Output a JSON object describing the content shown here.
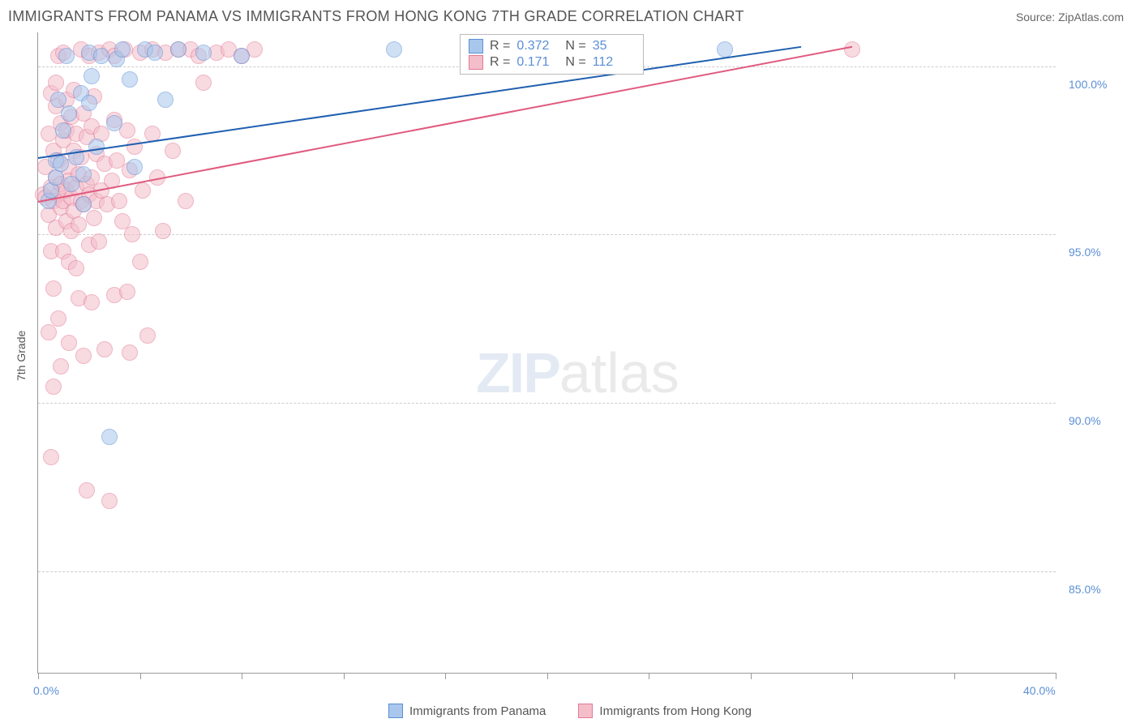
{
  "title": "IMMIGRANTS FROM PANAMA VS IMMIGRANTS FROM HONG KONG 7TH GRADE CORRELATION CHART",
  "source": "Source: ZipAtlas.com",
  "y_axis_title": "7th Grade",
  "watermark": {
    "part1": "ZIP",
    "part2": "atlas"
  },
  "xlim": [
    0,
    40
  ],
  "ylim": [
    82,
    101
  ],
  "x_ticks": [
    0,
    4,
    8,
    12,
    16,
    20,
    24,
    28,
    32,
    36,
    40
  ],
  "x_tick_labels": {
    "0": "0.0%",
    "40": "40.0%"
  },
  "y_grid": [
    85,
    90,
    95,
    100
  ],
  "y_labels": {
    "85": "85.0%",
    "90": "90.0%",
    "95": "95.0%",
    "100": "100.0%"
  },
  "colors": {
    "grid": "#cccccc",
    "axis": "#999999",
    "label": "#5b8fd6",
    "text": "#555555",
    "bg": "#ffffff"
  },
  "series": [
    {
      "name": "Immigrants from Panama",
      "fill": "#a9c7ec",
      "stroke": "#5b8fd6",
      "line_color": "#1f5fb0",
      "r_label": "R =",
      "r_value": "0.372",
      "n_label": "N =",
      "n_value": "35",
      "trend": {
        "x1": 0,
        "y1": 97.3,
        "x2": 30,
        "y2": 100.6
      },
      "points": [
        [
          0.4,
          96.0
        ],
        [
          0.5,
          96.3
        ],
        [
          0.7,
          97.2
        ],
        [
          0.7,
          96.7
        ],
        [
          0.8,
          99.0
        ],
        [
          0.9,
          97.1
        ],
        [
          1.0,
          98.1
        ],
        [
          1.1,
          100.3
        ],
        [
          1.2,
          98.6
        ],
        [
          1.3,
          96.5
        ],
        [
          1.5,
          97.3
        ],
        [
          1.7,
          99.2
        ],
        [
          1.8,
          95.9
        ],
        [
          1.8,
          96.8
        ],
        [
          2.0,
          100.4
        ],
        [
          2.0,
          98.9
        ],
        [
          2.1,
          99.7
        ],
        [
          2.3,
          97.6
        ],
        [
          2.5,
          100.3
        ],
        [
          2.8,
          89.0
        ],
        [
          3.0,
          98.3
        ],
        [
          3.1,
          100.2
        ],
        [
          3.3,
          100.5
        ],
        [
          3.6,
          99.6
        ],
        [
          3.8,
          97.0
        ],
        [
          4.2,
          100.5
        ],
        [
          4.6,
          100.4
        ],
        [
          5.0,
          99.0
        ],
        [
          5.5,
          100.5
        ],
        [
          6.5,
          100.4
        ],
        [
          8.0,
          100.3
        ],
        [
          14.0,
          100.5
        ],
        [
          17.5,
          100.4
        ],
        [
          18.0,
          100.5
        ],
        [
          27.0,
          100.5
        ]
      ]
    },
    {
      "name": "Immigrants from Hong Kong",
      "fill": "#f4bdca",
      "stroke": "#e27a95",
      "line_color": "#e05a7e",
      "r_label": "R =",
      "r_value": "0.171",
      "n_label": "N =",
      "n_value": "112",
      "trend": {
        "x1": 0,
        "y1": 96.0,
        "x2": 32,
        "y2": 100.6
      },
      "points": [
        [
          0.2,
          96.2
        ],
        [
          0.3,
          96.1
        ],
        [
          0.3,
          97.0
        ],
        [
          0.4,
          95.6
        ],
        [
          0.4,
          98.0
        ],
        [
          0.4,
          92.1
        ],
        [
          0.5,
          96.4
        ],
        [
          0.5,
          99.2
        ],
        [
          0.5,
          94.5
        ],
        [
          0.5,
          88.4
        ],
        [
          0.6,
          96.0
        ],
        [
          0.6,
          97.5
        ],
        [
          0.6,
          93.4
        ],
        [
          0.6,
          90.5
        ],
        [
          0.7,
          96.7
        ],
        [
          0.7,
          95.2
        ],
        [
          0.7,
          98.8
        ],
        [
          0.7,
          99.5
        ],
        [
          0.8,
          96.2
        ],
        [
          0.8,
          97.2
        ],
        [
          0.8,
          92.5
        ],
        [
          0.8,
          100.3
        ],
        [
          0.9,
          95.8
        ],
        [
          0.9,
          96.5
        ],
        [
          0.9,
          98.3
        ],
        [
          0.9,
          91.1
        ],
        [
          1.0,
          96.0
        ],
        [
          1.0,
          97.8
        ],
        [
          1.0,
          100.4
        ],
        [
          1.0,
          94.5
        ],
        [
          1.1,
          96.3
        ],
        [
          1.1,
          95.4
        ],
        [
          1.1,
          98.1
        ],
        [
          1.1,
          99.0
        ],
        [
          1.2,
          94.2
        ],
        [
          1.2,
          97.0
        ],
        [
          1.2,
          96.6
        ],
        [
          1.2,
          91.8
        ],
        [
          1.3,
          95.1
        ],
        [
          1.3,
          98.5
        ],
        [
          1.3,
          96.1
        ],
        [
          1.4,
          97.5
        ],
        [
          1.4,
          99.3
        ],
        [
          1.4,
          95.7
        ],
        [
          1.5,
          96.4
        ],
        [
          1.5,
          94.0
        ],
        [
          1.5,
          98.0
        ],
        [
          1.6,
          96.8
        ],
        [
          1.6,
          95.3
        ],
        [
          1.6,
          93.1
        ],
        [
          1.7,
          97.3
        ],
        [
          1.7,
          100.5
        ],
        [
          1.7,
          96.0
        ],
        [
          1.8,
          91.4
        ],
        [
          1.8,
          95.9
        ],
        [
          1.8,
          98.6
        ],
        [
          1.9,
          87.4
        ],
        [
          1.9,
          96.5
        ],
        [
          1.9,
          97.9
        ],
        [
          2.0,
          94.7
        ],
        [
          2.0,
          100.3
        ],
        [
          2.0,
          96.2
        ],
        [
          2.1,
          93.0
        ],
        [
          2.1,
          98.2
        ],
        [
          2.1,
          96.7
        ],
        [
          2.2,
          95.5
        ],
        [
          2.2,
          99.1
        ],
        [
          2.3,
          96.0
        ],
        [
          2.3,
          97.4
        ],
        [
          2.4,
          100.4
        ],
        [
          2.4,
          94.8
        ],
        [
          2.5,
          96.3
        ],
        [
          2.5,
          98.0
        ],
        [
          2.6,
          91.6
        ],
        [
          2.6,
          97.1
        ],
        [
          2.7,
          95.9
        ],
        [
          2.8,
          100.5
        ],
        [
          2.8,
          87.1
        ],
        [
          2.9,
          96.6
        ],
        [
          3.0,
          98.4
        ],
        [
          3.0,
          100.3
        ],
        [
          3.0,
          93.2
        ],
        [
          3.1,
          97.2
        ],
        [
          3.2,
          96.0
        ],
        [
          3.3,
          95.4
        ],
        [
          3.4,
          100.5
        ],
        [
          3.5,
          98.1
        ],
        [
          3.5,
          93.3
        ],
        [
          3.6,
          91.5
        ],
        [
          3.6,
          96.9
        ],
        [
          3.7,
          95.0
        ],
        [
          3.8,
          97.6
        ],
        [
          4.0,
          94.2
        ],
        [
          4.0,
          100.4
        ],
        [
          4.1,
          96.3
        ],
        [
          4.3,
          92.0
        ],
        [
          4.5,
          98.0
        ],
        [
          4.5,
          100.5
        ],
        [
          4.7,
          96.7
        ],
        [
          4.9,
          95.1
        ],
        [
          5.0,
          100.4
        ],
        [
          5.3,
          97.5
        ],
        [
          5.5,
          100.5
        ],
        [
          5.8,
          96.0
        ],
        [
          6.0,
          100.5
        ],
        [
          6.3,
          100.3
        ],
        [
          6.5,
          99.5
        ],
        [
          7.0,
          100.4
        ],
        [
          7.5,
          100.5
        ],
        [
          8.0,
          100.3
        ],
        [
          8.5,
          100.5
        ],
        [
          32.0,
          100.5
        ]
      ]
    }
  ]
}
